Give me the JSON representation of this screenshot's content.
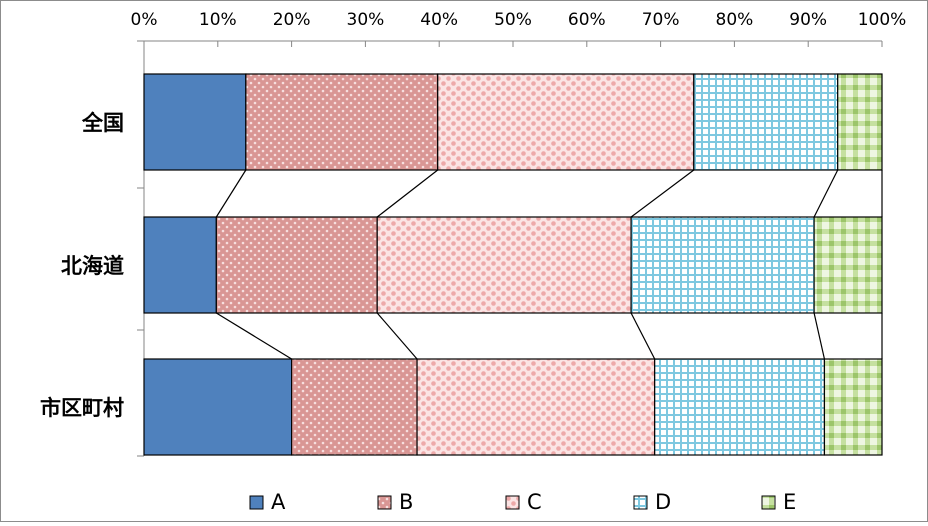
{
  "chart_data": {
    "type": "bar",
    "orientation": "horizontal",
    "stacked": "percent",
    "title": "",
    "xlabel": "",
    "ylabel": "",
    "xlim": [
      0,
      100
    ],
    "x_ticks": [
      "0%",
      "10%",
      "20%",
      "30%",
      "40%",
      "50%",
      "60%",
      "70%",
      "80%",
      "90%",
      "100%"
    ],
    "categories": [
      "全国",
      "北海道",
      "市区町村"
    ],
    "series": [
      {
        "name": "A",
        "values": [
          13.8,
          9.8,
          20.0
        ],
        "color": "#4f81bd",
        "pattern": "solid"
      },
      {
        "name": "B",
        "values": [
          26.0,
          21.8,
          17.0
        ],
        "color": "#d99694",
        "pattern": "dots"
      },
      {
        "name": "C",
        "values": [
          34.7,
          34.4,
          32.2
        ],
        "color": "#f2c4c4",
        "pattern": "checker"
      },
      {
        "name": "D",
        "values": [
          19.5,
          24.8,
          23.0
        ],
        "color": "#8ed1e6",
        "pattern": "grid"
      },
      {
        "name": "E",
        "values": [
          6.0,
          9.2,
          7.8
        ],
        "color": "#b6d58d",
        "pattern": "plaid"
      }
    ],
    "series_lines": true,
    "grid": false,
    "legend_position": "bottom"
  }
}
